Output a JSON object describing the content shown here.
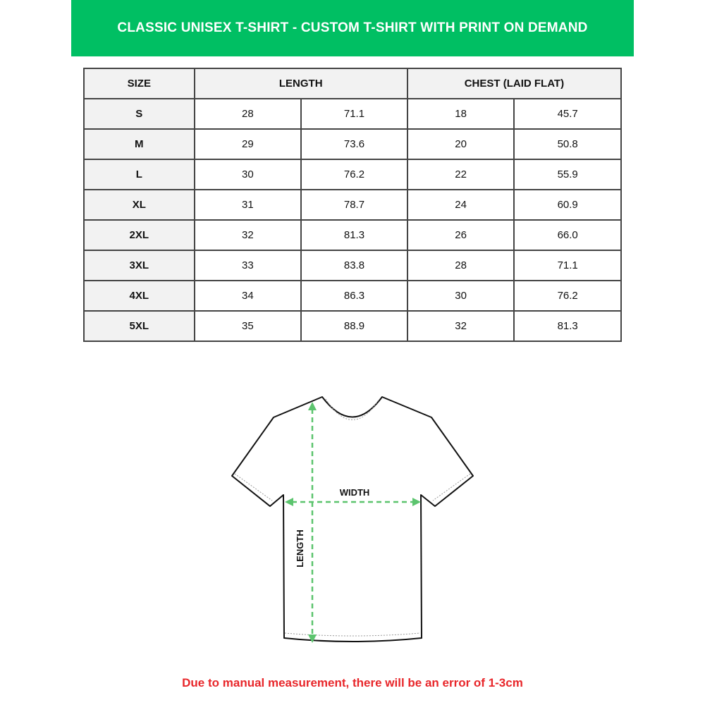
{
  "title": "CLASSIC UNISEX T-SHIRT - CUSTOM T-SHIRT WITH PRINT ON DEMAND",
  "table": {
    "headers": [
      "SIZE",
      "LENGTH",
      "CHEST (LAID FLAT)"
    ],
    "rows": [
      [
        "S",
        "28",
        "71.1",
        "18",
        "45.7"
      ],
      [
        "M",
        "29",
        "73.6",
        "20",
        "50.8"
      ],
      [
        "L",
        "30",
        "76.2",
        "22",
        "55.9"
      ],
      [
        "XL",
        "31",
        "78.7",
        "24",
        "60.9"
      ],
      [
        "2XL",
        "32",
        "81.3",
        "26",
        "66.0"
      ],
      [
        "3XL",
        "33",
        "83.8",
        "28",
        "71.1"
      ],
      [
        "4XL",
        "34",
        "86.3",
        "30",
        "76.2"
      ],
      [
        "5XL",
        "35",
        "88.9",
        "32",
        "81.3"
      ]
    ]
  },
  "diagram": {
    "width_label": "WIDTH",
    "length_label": "LENGTH",
    "arrow_color": "#5cc46e"
  },
  "note": "Due to manual measurement, there will be an error of 1-3cm",
  "colors": {
    "banner": "#00bf63",
    "note": "#e8262a"
  }
}
